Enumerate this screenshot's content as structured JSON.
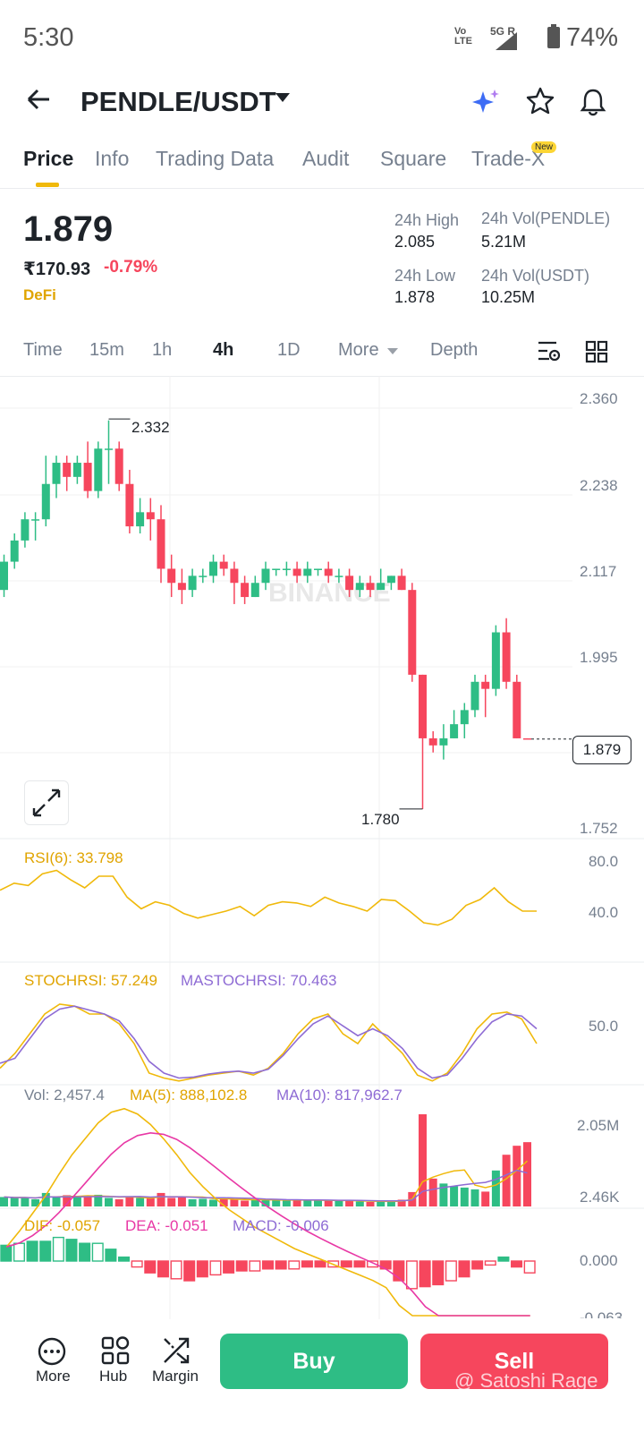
{
  "status": {
    "time": "5:30",
    "net": "Vo LTE",
    "signal": "5G R",
    "battery": "74%"
  },
  "header": {
    "pair": "PENDLE/USDT",
    "ai_label": "Ai"
  },
  "tabs": [
    {
      "label": "Price"
    },
    {
      "label": "Info"
    },
    {
      "label": "Trading Data"
    },
    {
      "label": "Audit"
    },
    {
      "label": "Square"
    },
    {
      "label": "Trade-X"
    }
  ],
  "new_badge": "New",
  "price": {
    "last": "1.879",
    "inr": "₹170.93",
    "change": "-0.79%",
    "tag": "DeFi",
    "high_label": "24h High",
    "high": "2.085",
    "low_label": "24h Low",
    "low": "1.878",
    "vol_base_label": "24h Vol(PENDLE)",
    "vol_base": "5.21M",
    "vol_quote_label": "24h Vol(USDT)",
    "vol_quote": "10.25M"
  },
  "timeframes": [
    "Time",
    "15m",
    "1h",
    "4h",
    "1D",
    "More",
    "Depth"
  ],
  "active_timeframe": "4h",
  "chart": {
    "yticks": [
      "2.360",
      "2.238",
      "2.117",
      "1.995",
      "1.752"
    ],
    "max_label": "2.332",
    "min_label": "1.780",
    "last_label": "1.879",
    "watermark": "BINANCE"
  },
  "indicators": {
    "rsi": "RSI(6): 33.798",
    "rsi_ticks": [
      "80.0",
      "40.0"
    ],
    "stoch": "STOCHRSI: 57.249",
    "mastoch": "MASTOCHRSI: 70.463",
    "stoch_tick": "50.0",
    "vol": "Vol: 2,457.4",
    "ma5": "MA(5): 888,102.8",
    "ma10": "MA(10): 817,962.7",
    "vol_ticks": [
      "2.05M",
      "2.46K"
    ],
    "dif": "DIF: -0.057",
    "dea": "DEA: -0.051",
    "macd": "MACD: -0.006",
    "macd_tick": "0.000",
    "macd_tick2": "-0.063"
  },
  "chart_data": {
    "type": "candlestick",
    "ylim": [
      1.752,
      2.36
    ],
    "candles": [
      [
        2.09,
        2.13,
        2.14,
        2.08
      ],
      [
        2.13,
        2.16,
        2.17,
        2.12
      ],
      [
        2.16,
        2.19,
        2.2,
        2.15
      ],
      [
        2.19,
        2.19,
        2.2,
        2.16
      ],
      [
        2.19,
        2.24,
        2.28,
        2.18
      ],
      [
        2.24,
        2.27,
        2.28,
        2.22
      ],
      [
        2.27,
        2.25,
        2.28,
        2.23
      ],
      [
        2.25,
        2.27,
        2.28,
        2.24
      ],
      [
        2.27,
        2.23,
        2.3,
        2.22
      ],
      [
        2.23,
        2.29,
        2.3,
        2.22
      ],
      [
        2.29,
        2.29,
        2.33,
        2.24
      ],
      [
        2.29,
        2.24,
        2.3,
        2.23
      ],
      [
        2.24,
        2.18,
        2.26,
        2.17
      ],
      [
        2.18,
        2.2,
        2.22,
        2.17
      ],
      [
        2.2,
        2.19,
        2.22,
        2.16
      ],
      [
        2.19,
        2.12,
        2.21,
        2.1
      ],
      [
        2.12,
        2.1,
        2.14,
        2.08
      ],
      [
        2.1,
        2.09,
        2.12,
        2.07
      ],
      [
        2.09,
        2.11,
        2.12,
        2.08
      ],
      [
        2.11,
        2.11,
        2.12,
        2.1
      ],
      [
        2.11,
        2.13,
        2.14,
        2.1
      ],
      [
        2.13,
        2.12,
        2.14,
        2.11
      ],
      [
        2.12,
        2.1,
        2.13,
        2.07
      ],
      [
        2.1,
        2.08,
        2.11,
        2.07
      ],
      [
        2.08,
        2.1,
        2.11,
        2.08
      ],
      [
        2.1,
        2.12,
        2.13,
        2.09
      ],
      [
        2.12,
        2.12,
        2.12,
        2.11
      ],
      [
        2.12,
        2.12,
        2.13,
        2.11
      ],
      [
        2.12,
        2.11,
        2.13,
        2.1
      ],
      [
        2.11,
        2.12,
        2.13,
        2.1
      ],
      [
        2.12,
        2.12,
        2.12,
        2.11
      ],
      [
        2.12,
        2.11,
        2.13,
        2.1
      ],
      [
        2.11,
        2.11,
        2.12,
        2.1
      ],
      [
        2.11,
        2.09,
        2.12,
        2.08
      ],
      [
        2.09,
        2.1,
        2.11,
        2.08
      ],
      [
        2.1,
        2.09,
        2.11,
        2.08
      ],
      [
        2.09,
        2.1,
        2.12,
        2.09
      ],
      [
        2.1,
        2.11,
        2.11,
        2.09
      ],
      [
        2.11,
        2.09,
        2.12,
        2.09
      ],
      [
        2.09,
        1.97,
        2.1,
        1.96
      ],
      [
        1.97,
        1.88,
        1.97,
        1.78
      ],
      [
        1.88,
        1.87,
        1.89,
        1.86
      ],
      [
        1.87,
        1.88,
        1.9,
        1.85
      ],
      [
        1.88,
        1.9,
        1.92,
        1.88
      ],
      [
        1.9,
        1.92,
        1.93,
        1.88
      ],
      [
        1.92,
        1.96,
        1.97,
        1.91
      ],
      [
        1.96,
        1.95,
        1.97,
        1.91
      ],
      [
        1.95,
        2.03,
        2.04,
        1.94
      ],
      [
        2.03,
        1.96,
        2.05,
        1.95
      ],
      [
        1.96,
        1.88,
        1.97,
        1.88
      ],
      [
        1.88,
        1.879,
        1.88,
        1.879
      ]
    ],
    "volume_max": 2050000,
    "volumes": [
      210,
      190,
      200,
      160,
      300,
      210,
      250,
      200,
      230,
      260,
      190,
      160,
      220,
      190,
      180,
      300,
      190,
      220,
      160,
      170,
      150,
      170,
      160,
      130,
      140,
      150,
      150,
      140,
      130,
      140,
      140,
      130,
      130,
      120,
      110,
      100,
      110,
      120,
      150,
      320,
      2050,
      620,
      510,
      450,
      420,
      380,
      330,
      800,
      1150,
      1350,
      1430
    ],
    "rsi": [
      58,
      64,
      62,
      72,
      75,
      67,
      60,
      70,
      70,
      52,
      42,
      48,
      45,
      38,
      34,
      37,
      40,
      44,
      36,
      45,
      48,
      47,
      44,
      52,
      47,
      44,
      40,
      50,
      49,
      40,
      30,
      28,
      33,
      45,
      50,
      60,
      48,
      40,
      40
    ],
    "stochrsi": [
      15,
      30,
      50,
      70,
      80,
      78,
      70,
      70,
      60,
      40,
      10,
      5,
      2,
      5,
      8,
      10,
      12,
      8,
      15,
      30,
      50,
      65,
      70,
      50,
      40,
      60,
      45,
      30,
      8,
      2,
      10,
      30,
      55,
      70,
      72,
      65,
      40
    ],
    "mastochrsi": [
      20,
      25,
      45,
      65,
      75,
      78,
      74,
      70,
      63,
      45,
      22,
      10,
      5,
      6,
      9,
      11,
      12,
      10,
      14,
      28,
      45,
      60,
      68,
      58,
      48,
      55,
      48,
      35,
      15,
      5,
      8,
      25,
      45,
      62,
      70,
      68,
      55
    ],
    "macd_hist": [
      0.008,
      0.009,
      0.01,
      0.01,
      0.012,
      0.011,
      0.009,
      0.009,
      0.006,
      0.002,
      -0.003,
      -0.006,
      -0.008,
      -0.009,
      -0.01,
      -0.008,
      -0.007,
      -0.006,
      -0.005,
      -0.005,
      -0.004,
      -0.004,
      -0.004,
      -0.003,
      -0.003,
      -0.003,
      -0.003,
      -0.003,
      -0.003,
      -0.004,
      -0.01,
      -0.014,
      -0.013,
      -0.012,
      -0.01,
      -0.008,
      -0.004,
      -0.002,
      0.002,
      -0.003,
      -0.006
    ],
    "series": [
      {
        "name": "DIF",
        "color": "#f0b90b"
      },
      {
        "name": "DEA",
        "color": "#e838a5"
      }
    ]
  },
  "bottom": {
    "more": "More",
    "hub": "Hub",
    "margin": "Margin",
    "buy": "Buy",
    "sell": "Sell",
    "watermark": "@ Satoshi Rage"
  },
  "colors": {
    "up": "#2ebd85",
    "down": "#f6465d",
    "accent": "#f0b90b"
  }
}
